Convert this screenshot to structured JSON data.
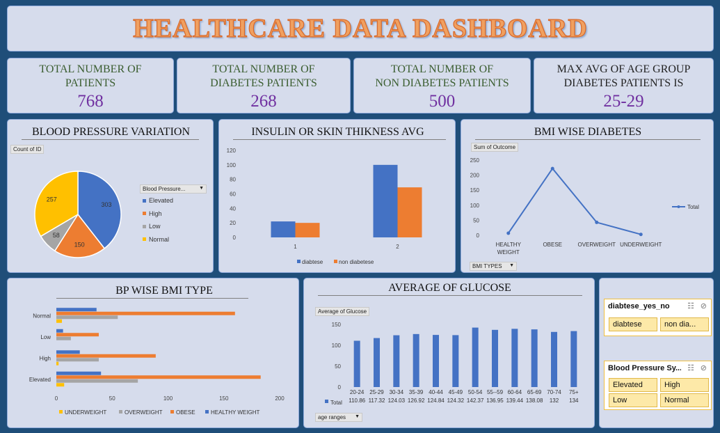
{
  "header": {
    "title": "HEALTHCARE DATA DASHBOARD"
  },
  "kpis": [
    {
      "label_line1": "TOTAL NUMBER OF",
      "label_line2": "PATIENTS",
      "value": "768"
    },
    {
      "label_line1": "TOTAL NUMBER OF",
      "label_line2": "DIABETES PATIENTS",
      "value": "268"
    },
    {
      "label_line1": "TOTAL NUMBER OF",
      "label_line2": "NON DIABETES PATIENTS",
      "value": "500"
    },
    {
      "label_line1": "MAX AVG OF AGE GROUP",
      "label_line2": "DIABETES PATIENTS IS",
      "value": "25-29"
    }
  ],
  "bp_variation": {
    "title": "BLOOD PRESSURE VARIATION",
    "field_tag": "Count of ID",
    "filter_label": "Blood Pressure...",
    "chart_data": {
      "type": "pie",
      "categories": [
        "Elevated",
        "High",
        "Low",
        "Normal"
      ],
      "values": [
        303,
        150,
        58,
        257
      ],
      "colors": [
        "#4472c4",
        "#ed7d31",
        "#a5a5a5",
        "#ffc000"
      ]
    }
  },
  "insulin": {
    "title": "INSULIN OR SKIN THIKNESS AVG",
    "chart_data": {
      "type": "bar",
      "categories": [
        "1",
        "2"
      ],
      "series": [
        {
          "name": "diabtese",
          "values": [
            22,
            100
          ],
          "color": "#4472c4"
        },
        {
          "name": "non diabetese",
          "values": [
            20,
            69
          ],
          "color": "#ed7d31"
        }
      ],
      "ylim": [
        0,
        120
      ],
      "yticks": [
        "0",
        "20",
        "40",
        "60",
        "80",
        "100",
        "120"
      ]
    }
  },
  "bmi": {
    "title": "BMI WISE DIABETES",
    "field_tag": "Sum of Outcome",
    "filter_label": "BMI TYPES",
    "chart_data": {
      "type": "line",
      "categories": [
        "HEALTHY WEIGHT",
        "OBESE",
        "OVERWEIGHT",
        "UNDERWEIGHT"
      ],
      "series": [
        {
          "name": "Total",
          "values": [
            7,
            222,
            43,
            3
          ],
          "color": "#4472c4"
        }
      ],
      "ylim": [
        0,
        250
      ],
      "yticks": [
        "0",
        "50",
        "100",
        "150",
        "200",
        "250"
      ],
      "x_label_lines": [
        [
          "HEALTHY",
          "WEIGHT"
        ],
        [
          "OBESE"
        ],
        [
          "OVERWEIGHT"
        ],
        [
          "UNDERWEIGHT"
        ]
      ]
    }
  },
  "bp_bmi": {
    "title": "BP WISE BMI TYPE",
    "chart_data": {
      "type": "bar",
      "orientation": "horizontal",
      "categories": [
        "Elevated",
        "High",
        "Low",
        "Normal"
      ],
      "series": [
        {
          "name": "UNDERWEIGHT",
          "values": [
            7,
            2,
            0,
            5
          ],
          "color": "#ffc000"
        },
        {
          "name": "OVERWEIGHT",
          "values": [
            73,
            38,
            13,
            55
          ],
          "color": "#a5a5a5"
        },
        {
          "name": "OBESE",
          "values": [
            183,
            89,
            38,
            160
          ],
          "color": "#ed7d31"
        },
        {
          "name": "HEALTHY WEIGHT",
          "values": [
            40,
            21,
            6,
            36
          ],
          "color": "#4472c4"
        }
      ],
      "xlim": [
        0,
        200
      ],
      "xticks": [
        "0",
        "50",
        "100",
        "150",
        "200"
      ]
    }
  },
  "glucose": {
    "title": "AVERAGE OF GLUCOSE",
    "field_tag": "Average of Glucose",
    "filter_label": "age ranges",
    "chart_data": {
      "type": "bar",
      "categories": [
        "20-24",
        "25-29",
        "30-34",
        "35-39",
        "40-44",
        "45-49",
        "50-54",
        "55--59",
        "60-64",
        "65-69",
        "70-74",
        "75+"
      ],
      "series": [
        {
          "name": "Total",
          "values": [
            110.86,
            117.32,
            124.03,
            126.92,
            124.84,
            124.32,
            142.37,
            136.95,
            139.44,
            138.08,
            132,
            134
          ],
          "color": "#4472c4"
        }
      ],
      "value_labels": [
        "110.86",
        "117.32",
        "124.03",
        "126.92",
        "124.84",
        "124.32",
        "142.37",
        "136.95",
        "139.44",
        "138.08",
        "132",
        "134"
      ],
      "ylim": [
        0,
        150
      ],
      "yticks": [
        "0",
        "50",
        "100",
        "150"
      ]
    }
  },
  "slicers": {
    "diabetes": {
      "title": "diabtese_yes_no",
      "items": [
        "diabtese",
        "non dia..."
      ]
    },
    "bp": {
      "title": "Blood Pressure Sy...",
      "items": [
        "Elevated",
        "High",
        "Low",
        "Normal"
      ]
    }
  },
  "icons": {
    "multi_select": "multi-select-icon",
    "clear_filter": "clear-filter-icon"
  }
}
